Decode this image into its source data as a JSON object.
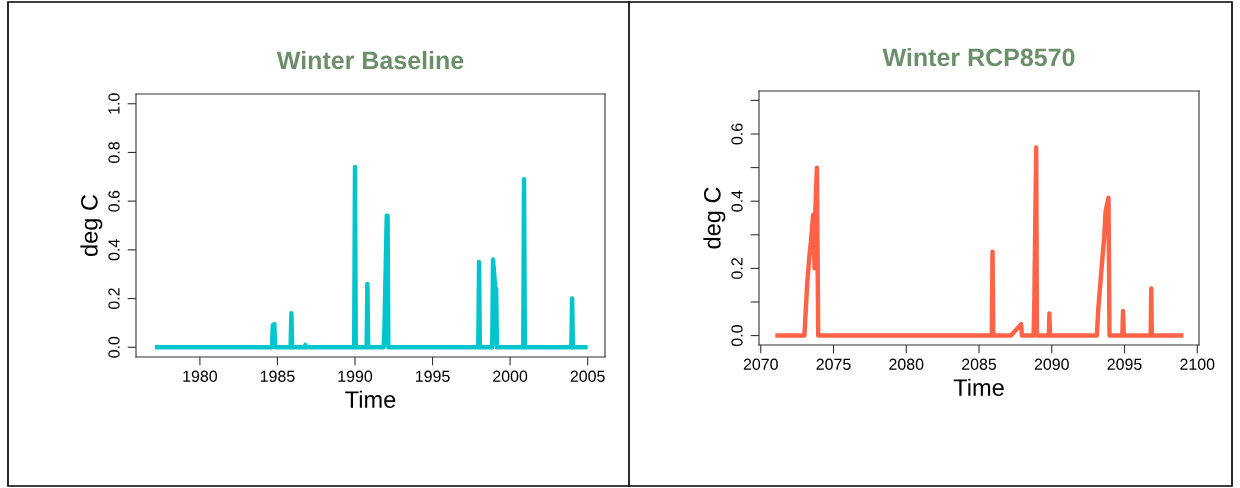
{
  "chart_data": [
    {
      "type": "line",
      "title": "Winter Baseline",
      "xlabel": "Time",
      "ylabel": "deg C",
      "xlim": [
        1975.88,
        2006.12
      ],
      "xticks": [
        1980,
        1985,
        1990,
        1995,
        2000,
        2005
      ],
      "ylim": [
        -0.04,
        1.04
      ],
      "yticks": [
        {
          "value": 0,
          "label": "0.0"
        },
        {
          "value": 0.2,
          "label": "0.2"
        },
        {
          "value": 0.4,
          "label": "0.4"
        },
        {
          "value": 0.6,
          "label": "0.6"
        },
        {
          "value": 0.8,
          "label": "0.8"
        },
        {
          "value": 1,
          "label": "1.0"
        }
      ],
      "grid": false,
      "series": [
        {
          "color": "#00c5cd",
          "x": [
            1977.1,
            1984.65,
            1984.7,
            1984.8,
            1984.85,
            1985.85,
            1985.9,
            1985.95,
            1986.75,
            1986.8,
            1986.85,
            1989.95,
            1990.0,
            1990.05,
            1990.75,
            1990.8,
            1990.85,
            1991.85,
            1991.9,
            1992.05,
            1992.1,
            1992.15,
            1997.95,
            1998.0,
            1998.05,
            1998.85,
            1998.9,
            1999.05,
            1999.1,
            1999.15,
            2000.85,
            2000.9,
            2000.95,
            2003.95,
            2004.0,
            2004.05,
            2005.0
          ],
          "values": [
            0,
            0,
            0.09,
            0.095,
            0,
            0,
            0.14,
            0,
            0,
            0.01,
            0,
            0,
            0.74,
            0,
            0,
            0.26,
            0,
            0,
            0.08,
            0.54,
            0.54,
            0,
            0,
            0.35,
            0,
            0,
            0.36,
            0.24,
            0.24,
            0,
            0,
            0.69,
            0,
            0,
            0.2,
            0,
            0
          ]
        }
      ]
    },
    {
      "type": "line",
      "title": "Winter RCP8570",
      "xlabel": "Time",
      "ylabel": "deg C",
      "xlim": [
        2069.88,
        2100.12
      ],
      "xticks": [
        2070,
        2075,
        2080,
        2085,
        2090,
        2095,
        2100
      ],
      "ylim": [
        -0.028,
        0.728
      ],
      "yticks": [
        {
          "value": 0,
          "label": "0.0"
        },
        {
          "value": 0.1,
          "label": null
        },
        {
          "value": 0.2,
          "label": "0.2"
        },
        {
          "value": 0.3,
          "label": null
        },
        {
          "value": 0.4,
          "label": "0.4"
        },
        {
          "value": 0.5,
          "label": null
        },
        {
          "value": 0.6,
          "label": "0.6"
        },
        {
          "value": 0.7,
          "label": null
        }
      ],
      "grid": false,
      "series": [
        {
          "color": "#ff6347",
          "x": [
            2071.0,
            2073.0,
            2073.1,
            2073.2,
            2073.35,
            2073.45,
            2073.6,
            2073.7,
            2073.75,
            2073.86,
            2073.95,
            2085.88,
            2085.93,
            2085.98,
            2087.2,
            2087.9,
            2087.95,
            2088.75,
            2088.8,
            2088.93,
            2088.98,
            2089.8,
            2089.84,
            2089.88,
            2093.1,
            2093.2,
            2093.35,
            2093.5,
            2093.6,
            2093.7,
            2093.9,
            2093.97,
            2094.85,
            2094.9,
            2094.95,
            2096.8,
            2096.84,
            2096.88,
            2099.05
          ],
          "values": [
            0,
            0,
            0.08,
            0.16,
            0.24,
            0.28,
            0.36,
            0.2,
            0.37,
            0.5,
            0,
            0,
            0.25,
            0,
            0,
            0.034,
            0,
            0,
            0.086,
            0.56,
            0,
            0,
            0.066,
            0,
            0,
            0.08,
            0.16,
            0.24,
            0.29,
            0.37,
            0.41,
            0,
            0,
            0.073,
            0,
            0,
            0.14,
            0,
            0
          ]
        }
      ]
    }
  ]
}
